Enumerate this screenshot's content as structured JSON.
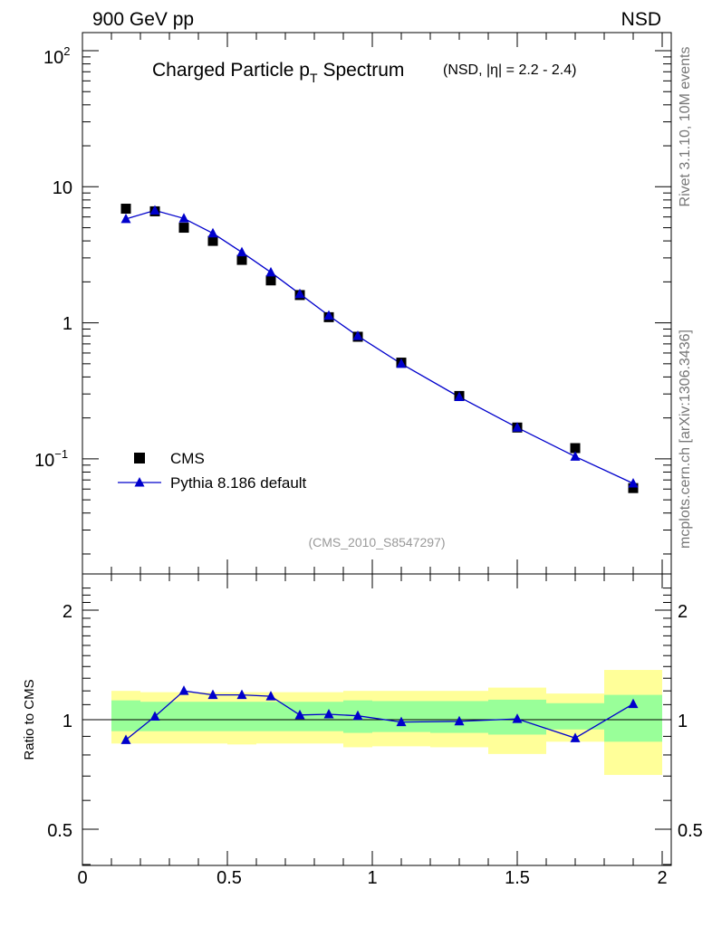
{
  "header": {
    "left": "900 GeV pp",
    "right": "NSD"
  },
  "side_labels": {
    "top": "Rivet 3.1.10,  10M events",
    "bottom": "mcplots.cern.ch [arXiv:1306.3436]"
  },
  "chart_data": [
    {
      "type": "scatter",
      "title": "Charged Particle p",
      "title_sub": "T",
      "title_rest": "Spectrum",
      "title_note": "(NSD, |η| = 2.2 - 2.4)",
      "watermark": "(CMS_2010_S8547297)",
      "yscale": "log",
      "xlim": [
        0,
        2
      ],
      "ylim": [
        0.02,
        130
      ],
      "ytick_labels": [
        "10",
        "1"
      ],
      "ytick_exp_labels": [
        {
          "base": "10",
          "exp": "2"
        },
        {
          "base": "10",
          "exp": "−1"
        }
      ],
      "legend_position": "lower-left",
      "series": [
        {
          "name": "CMS",
          "color": "#000000",
          "marker": "square",
          "x": [
            0.15,
            0.25,
            0.35,
            0.45,
            0.55,
            0.65,
            0.75,
            0.85,
            0.95,
            1.1,
            1.3,
            1.5,
            1.7,
            1.9
          ],
          "y": [
            6.9,
            6.6,
            5.0,
            4.0,
            2.9,
            2.05,
            1.6,
            1.1,
            0.79,
            0.51,
            0.29,
            0.17,
            0.12,
            0.061
          ]
        },
        {
          "name": "Pythia 8.186 default",
          "color": "#0000cc",
          "marker": "triangle",
          "x": [
            0.15,
            0.25,
            0.35,
            0.45,
            0.55,
            0.65,
            0.75,
            0.85,
            0.95,
            1.1,
            1.3,
            1.5,
            1.7,
            1.9
          ],
          "y": [
            5.8,
            6.7,
            5.85,
            4.55,
            3.3,
            2.35,
            1.63,
            1.13,
            0.8,
            0.5,
            0.285,
            0.17,
            0.104,
            0.066
          ]
        }
      ]
    },
    {
      "type": "line",
      "ylabel": "Ratio to CMS",
      "xlim": [
        0,
        2
      ],
      "ylim": [
        0.3,
        2.3
      ],
      "xtick_labels": [
        "0",
        "0.5",
        "1",
        "1.5",
        "2"
      ],
      "ytick_labels": [
        "2",
        "1",
        "0.5"
      ],
      "bands": [
        {
          "x0": 0.1,
          "x1": 0.2,
          "inner": [
            0.93,
            1.13
          ],
          "outer": [
            0.86,
            1.2
          ]
        },
        {
          "x0": 0.2,
          "x1": 0.3,
          "inner": [
            0.93,
            1.12
          ],
          "outer": [
            0.86,
            1.19
          ]
        },
        {
          "x0": 0.3,
          "x1": 0.4,
          "inner": [
            0.93,
            1.12
          ],
          "outer": [
            0.86,
            1.19
          ]
        },
        {
          "x0": 0.4,
          "x1": 0.5,
          "inner": [
            0.93,
            1.12
          ],
          "outer": [
            0.86,
            1.19
          ]
        },
        {
          "x0": 0.5,
          "x1": 0.6,
          "inner": [
            0.93,
            1.12
          ],
          "outer": [
            0.855,
            1.19
          ]
        },
        {
          "x0": 0.6,
          "x1": 0.7,
          "inner": [
            0.93,
            1.12
          ],
          "outer": [
            0.86,
            1.19
          ]
        },
        {
          "x0": 0.7,
          "x1": 0.8,
          "inner": [
            0.93,
            1.12
          ],
          "outer": [
            0.86,
            1.19
          ]
        },
        {
          "x0": 0.8,
          "x1": 0.9,
          "inner": [
            0.93,
            1.12
          ],
          "outer": [
            0.86,
            1.19
          ]
        },
        {
          "x0": 0.9,
          "x1": 1.0,
          "inner": [
            0.92,
            1.13
          ],
          "outer": [
            0.84,
            1.2
          ]
        },
        {
          "x0": 1.0,
          "x1": 1.2,
          "inner": [
            0.925,
            1.125
          ],
          "outer": [
            0.845,
            1.2
          ]
        },
        {
          "x0": 1.2,
          "x1": 1.4,
          "inner": [
            0.92,
            1.125
          ],
          "outer": [
            0.84,
            1.2
          ]
        },
        {
          "x0": 1.4,
          "x1": 1.6,
          "inner": [
            0.91,
            1.135
          ],
          "outer": [
            0.805,
            1.225
          ]
        },
        {
          "x0": 1.6,
          "x1": 1.8,
          "inner": [
            0.94,
            1.11
          ],
          "outer": [
            0.87,
            1.18
          ]
        },
        {
          "x0": 1.8,
          "x1": 2.0,
          "inner": [
            0.87,
            1.17
          ],
          "outer": [
            0.705,
            1.37
          ]
        }
      ],
      "band_colors": {
        "inner": "#99ff99",
        "outer": "#ffff99"
      },
      "series": [
        {
          "name": "Pythia 8.186 default",
          "color": "#0000cc",
          "marker": "triangle",
          "x": [
            0.15,
            0.25,
            0.35,
            0.45,
            0.55,
            0.65,
            0.75,
            0.85,
            0.95,
            1.1,
            1.3,
            1.5,
            1.7,
            1.9
          ],
          "y": [
            0.88,
            1.02,
            1.2,
            1.17,
            1.17,
            1.16,
            1.03,
            1.035,
            1.025,
            0.985,
            0.99,
            1.005,
            0.89,
            1.105
          ]
        }
      ]
    }
  ]
}
